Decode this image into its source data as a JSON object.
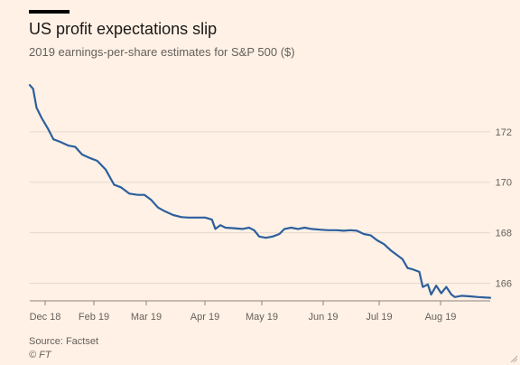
{
  "header": {
    "title": "US profit expectations slip",
    "subtitle": "2019 earnings-per-share estimates for S&P 500 ($)"
  },
  "footer": {
    "source": "Source: Factset",
    "credit": "© FT"
  },
  "colors": {
    "background": "#fff1e5",
    "line": "#2c5f9e",
    "grid": "#e6d9ce",
    "axis": "#66605c"
  },
  "chart_data": {
    "type": "line",
    "title": "US profit expectations slip",
    "subtitle": "2019 earnings-per-share estimates for S&P 500 ($)",
    "xlabel": "",
    "ylabel": "",
    "x_ticks": [
      "Dec 18",
      "Feb 19",
      "Mar 19",
      "Apr 19",
      "May 19",
      "Jun 19",
      "Jul 19",
      "Aug 19"
    ],
    "y_ticks": [
      166,
      168,
      170,
      172
    ],
    "ylim": [
      165.3,
      174
    ],
    "xlim": [
      "2018-12-01",
      "2019-08-31"
    ],
    "grid": true,
    "y_axis_side": "right",
    "series": [
      {
        "values": [
          [
            "2018-12-01",
            173.85
          ],
          [
            "2018-12-03",
            173.7
          ],
          [
            "2018-12-05",
            172.95
          ],
          [
            "2018-12-08",
            172.55
          ],
          [
            "2018-12-12",
            172.1
          ],
          [
            "2018-12-15",
            171.7
          ],
          [
            "2018-12-19",
            171.6
          ],
          [
            "2018-12-24",
            171.45
          ],
          [
            "2018-12-28",
            171.4
          ],
          [
            "2019-01-01",
            171.1
          ],
          [
            "2019-01-06",
            170.95
          ],
          [
            "2019-01-10",
            170.85
          ],
          [
            "2019-01-15",
            170.5
          ],
          [
            "2019-01-20",
            169.9
          ],
          [
            "2019-01-24",
            169.8
          ],
          [
            "2019-01-29",
            169.55
          ],
          [
            "2019-02-03",
            169.5
          ],
          [
            "2019-02-07",
            169.5
          ],
          [
            "2019-02-11",
            169.3
          ],
          [
            "2019-02-15",
            169.0
          ],
          [
            "2019-02-19",
            168.85
          ],
          [
            "2019-02-24",
            168.7
          ],
          [
            "2019-03-01",
            168.62
          ],
          [
            "2019-03-05",
            168.6
          ],
          [
            "2019-03-10",
            168.6
          ],
          [
            "2019-03-15",
            168.6
          ],
          [
            "2019-03-19",
            168.52
          ],
          [
            "2019-03-21",
            168.15
          ],
          [
            "2019-03-24",
            168.3
          ],
          [
            "2019-03-27",
            168.2
          ],
          [
            "2019-04-01",
            168.18
          ],
          [
            "2019-04-06",
            168.15
          ],
          [
            "2019-04-10",
            168.2
          ],
          [
            "2019-04-13",
            168.1
          ],
          [
            "2019-04-16",
            167.85
          ],
          [
            "2019-04-20",
            167.8
          ],
          [
            "2019-04-24",
            167.85
          ],
          [
            "2019-04-28",
            167.95
          ],
          [
            "2019-05-01",
            168.15
          ],
          [
            "2019-05-05",
            168.2
          ],
          [
            "2019-05-09",
            168.15
          ],
          [
            "2019-05-13",
            168.2
          ],
          [
            "2019-05-17",
            168.15
          ],
          [
            "2019-05-22",
            168.12
          ],
          [
            "2019-05-27",
            168.1
          ],
          [
            "2019-06-01",
            168.1
          ],
          [
            "2019-06-05",
            168.08
          ],
          [
            "2019-06-09",
            168.1
          ],
          [
            "2019-06-13",
            168.08
          ],
          [
            "2019-06-17",
            167.95
          ],
          [
            "2019-06-21",
            167.9
          ],
          [
            "2019-06-25",
            167.7
          ],
          [
            "2019-06-29",
            167.55
          ],
          [
            "2019-07-03",
            167.3
          ],
          [
            "2019-07-06",
            167.15
          ],
          [
            "2019-07-10",
            166.95
          ],
          [
            "2019-07-13",
            166.6
          ],
          [
            "2019-07-16",
            166.55
          ],
          [
            "2019-07-20",
            166.45
          ],
          [
            "2019-07-22",
            165.85
          ],
          [
            "2019-07-25",
            165.95
          ],
          [
            "2019-07-27",
            165.55
          ],
          [
            "2019-07-30",
            165.9
          ],
          [
            "2019-08-02",
            165.6
          ],
          [
            "2019-08-05",
            165.85
          ],
          [
            "2019-08-08",
            165.55
          ],
          [
            "2019-08-10",
            165.45
          ],
          [
            "2019-08-14",
            165.5
          ],
          [
            "2019-08-19",
            165.48
          ],
          [
            "2019-08-24",
            165.45
          ],
          [
            "2019-08-31",
            165.42
          ]
        ]
      }
    ]
  }
}
